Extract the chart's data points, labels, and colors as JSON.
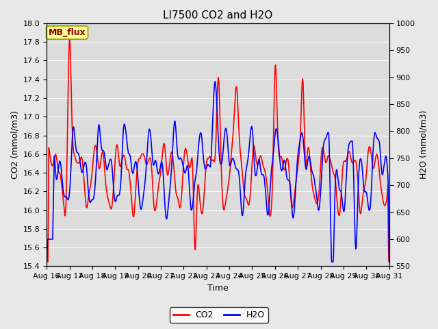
{
  "title": "LI7500 CO2 and H2O",
  "xlabel": "Time",
  "ylabel_left": "CO2 (mmol/m3)",
  "ylabel_right": "H2O (mmol/m3)",
  "annotation": "MB_flux",
  "x_tick_labels": [
    "Aug 16",
    "Aug 17",
    "Aug 18",
    "Aug 19",
    "Aug 20",
    "Aug 21",
    "Aug 22",
    "Aug 23",
    "Aug 24",
    "Aug 25",
    "Aug 26",
    "Aug 27",
    "Aug 28",
    "Aug 29",
    "Aug 30",
    "Aug 31"
  ],
  "ylim_left": [
    15.4,
    18.0
  ],
  "ylim_right": [
    550,
    1000
  ],
  "yticks_left": [
    15.4,
    15.6,
    15.8,
    16.0,
    16.2,
    16.4,
    16.6,
    16.8,
    17.0,
    17.2,
    17.4,
    17.6,
    17.8,
    18.0
  ],
  "yticks_right": [
    550,
    600,
    650,
    700,
    750,
    800,
    850,
    900,
    950,
    1000
  ],
  "co2_color": "#FF0000",
  "h2o_color": "#0000FF",
  "fig_facecolor": "#E8E8E8",
  "ax_facecolor": "#DCDCDC",
  "legend_co2": "CO2",
  "legend_h2o": "H2O",
  "title_fontsize": 11,
  "label_fontsize": 9,
  "tick_fontsize": 8,
  "annotation_fontsize": 9,
  "linewidth": 1.2
}
